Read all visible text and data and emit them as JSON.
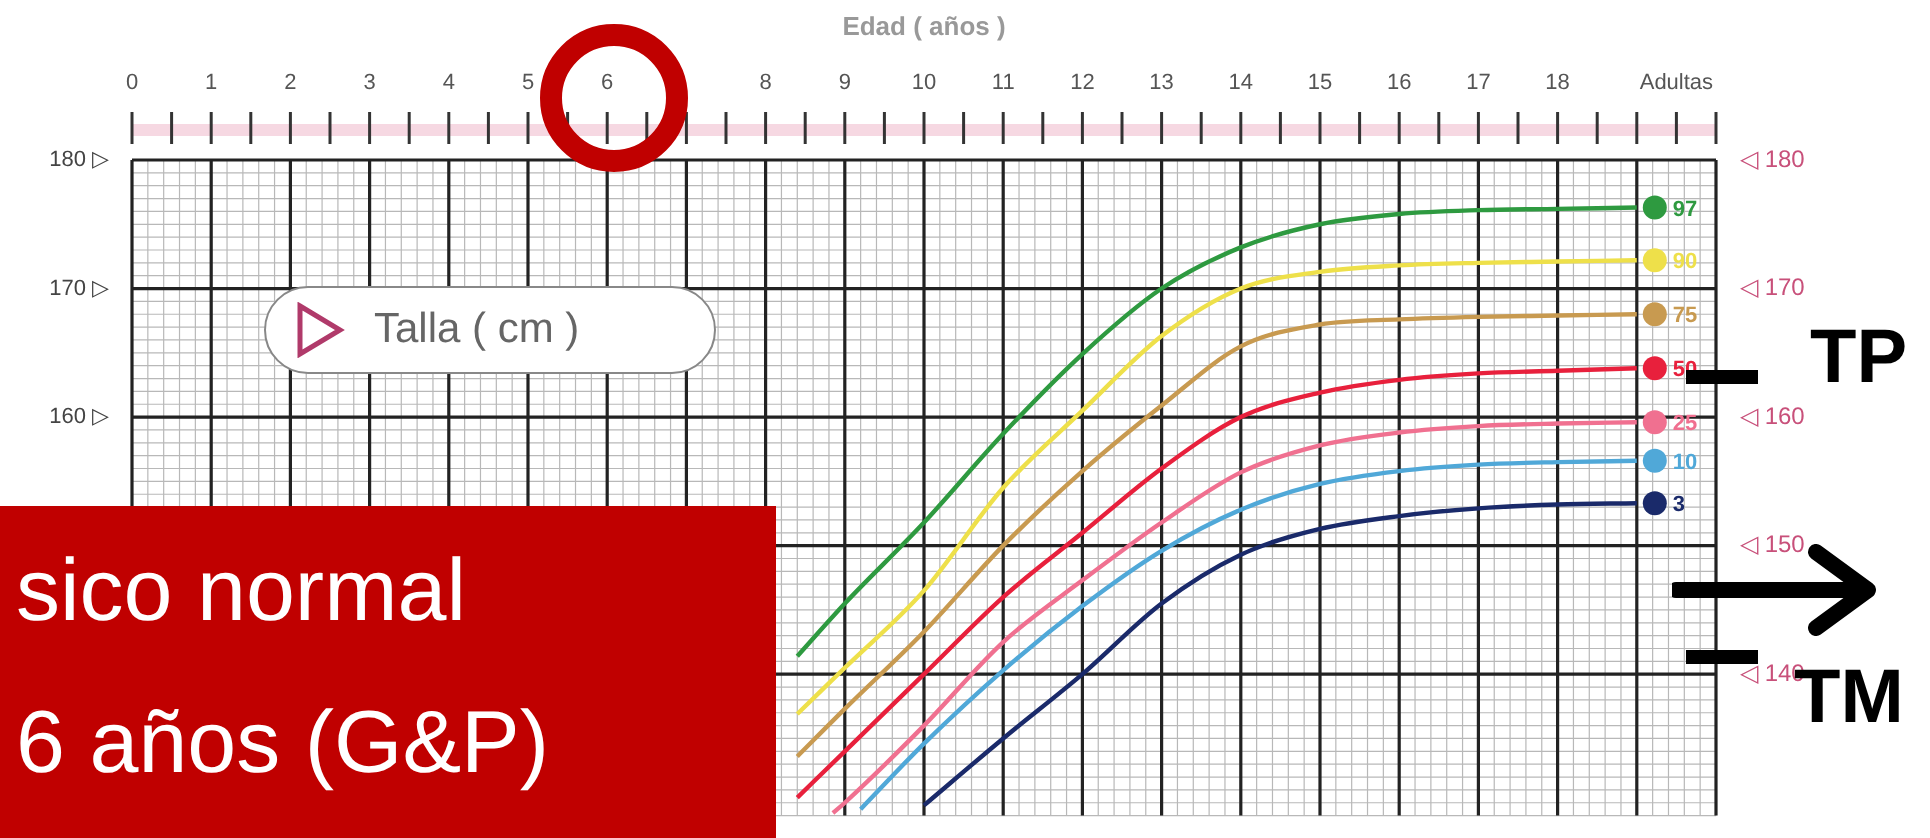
{
  "chart_data": {
    "type": "line",
    "xlabel": "Edad ( años )",
    "ylabel": "Talla ( cm )",
    "xlim": [
      0,
      20
    ],
    "ylim": [
      129,
      180
    ],
    "y2lim": [
      129,
      180
    ],
    "xticks": [
      0,
      1,
      2,
      3,
      4,
      5,
      6,
      8,
      9,
      10,
      11,
      12,
      13,
      14,
      15,
      16,
      17,
      18,
      {
        "value": 19.5,
        "label": "Adultas"
      }
    ],
    "yticks": [
      {
        "value": 140,
        "label": null
      },
      {
        "value": 150,
        "label": null
      },
      {
        "value": 160,
        "label": "160 ▷"
      },
      {
        "value": 170,
        "label": "170 ▷"
      },
      {
        "value": 180,
        "label": "180 ▷"
      }
    ],
    "y2ticks": [
      {
        "value": 140,
        "label": "◁ 140"
      },
      {
        "value": 150,
        "label": "◁ 150"
      },
      {
        "value": 160,
        "label": "◁ 160"
      },
      {
        "value": 170,
        "label": "◁ 170"
      },
      {
        "value": 180,
        "label": "◁ 180"
      }
    ],
    "grid": true,
    "legend": "right",
    "series": [
      {
        "name": "97",
        "color": "#2e9a40",
        "x": [
          8.4,
          9,
          10,
          11,
          12,
          13,
          14,
          15,
          16,
          17,
          18,
          19
        ],
        "values": [
          141.4,
          145.5,
          151.8,
          158.7,
          164.9,
          170,
          173.2,
          175,
          175.8,
          176.1,
          176.2,
          176.3
        ]
      },
      {
        "name": "90",
        "color": "#eee04a",
        "x": [
          8.4,
          9,
          10,
          11,
          12,
          13,
          14,
          15,
          16,
          17,
          18,
          19
        ],
        "values": [
          136.9,
          140.5,
          146.5,
          154.5,
          160.5,
          166.3,
          170,
          171.3,
          171.8,
          172,
          172.1,
          172.2
        ]
      },
      {
        "name": "75",
        "color": "#c89a50",
        "x": [
          8.4,
          9,
          10,
          11,
          12,
          13,
          14,
          15,
          16,
          17,
          18,
          19
        ],
        "values": [
          133.6,
          137.3,
          143.3,
          150,
          155.8,
          160.9,
          165.5,
          167.2,
          167.6,
          167.8,
          167.9,
          168
        ]
      },
      {
        "name": "50",
        "color": "#e8203c",
        "x": [
          8.4,
          9,
          10,
          11,
          12,
          13,
          14,
          15,
          16,
          17,
          18,
          19
        ],
        "values": [
          130.4,
          134,
          140,
          146,
          151,
          156,
          160,
          161.9,
          162.9,
          163.4,
          163.6,
          163.8
        ]
      },
      {
        "name": "25",
        "color": "#f07090",
        "x": [
          8.85,
          9,
          10,
          11,
          12,
          13,
          14,
          15,
          16,
          17,
          18,
          19
        ],
        "values": [
          129.2,
          130,
          136,
          142.5,
          147.3,
          151.8,
          155.7,
          157.8,
          158.8,
          159.3,
          159.5,
          159.6
        ]
      },
      {
        "name": "10",
        "color": "#50a8d8",
        "x": [
          9.2,
          10,
          11,
          12,
          13,
          14,
          15,
          16,
          17,
          18,
          19
        ],
        "values": [
          129.5,
          134.6,
          140.3,
          145.3,
          149.6,
          152.8,
          154.8,
          155.8,
          156.3,
          156.5,
          156.6
        ]
      },
      {
        "name": "3",
        "color": "#1a2a6a",
        "x": [
          10,
          11,
          12,
          13,
          14,
          15,
          16,
          17,
          18,
          19
        ],
        "values": [
          129.8,
          135,
          140,
          145.5,
          149.3,
          151.3,
          152.3,
          152.9,
          153.2,
          153.3
        ]
      }
    ],
    "annotations": [
      "sico normal",
      "6 años (G&P)",
      "TP",
      "TM"
    ]
  }
}
